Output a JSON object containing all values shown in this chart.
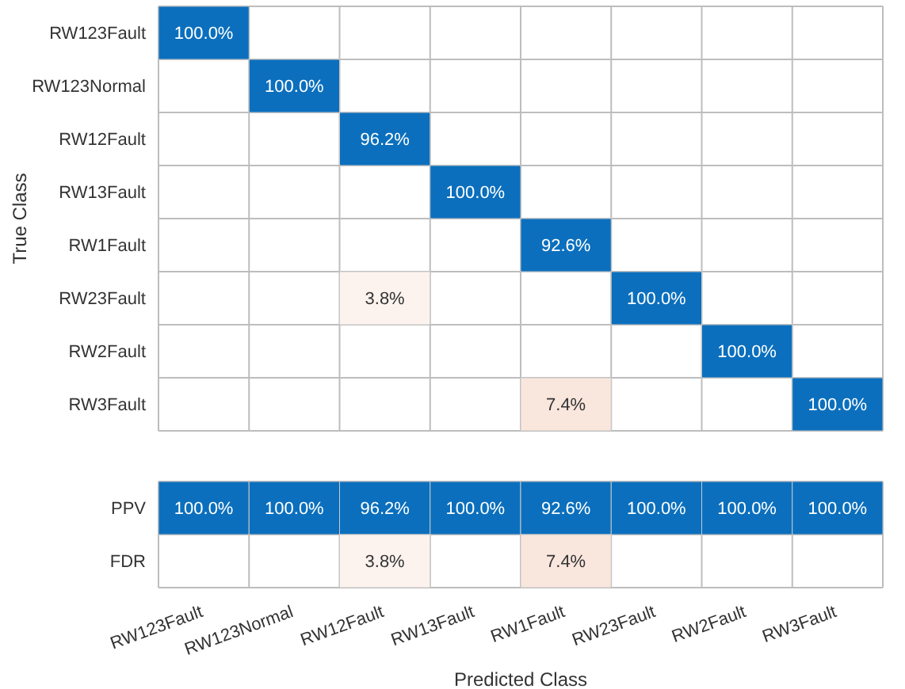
{
  "chart_data": [
    {
      "type": "heatmap",
      "ylabel": "True Class",
      "categories": [
        null,
        null,
        null,
        null,
        null,
        null,
        null,
        null
      ],
      "y_categories": [
        "RW123Fault",
        "RW123Normal",
        "RW12Fault",
        "RW13Fault",
        "RW1Fault",
        "RW23Fault",
        "RW2Fault",
        "RW3Fault"
      ],
      "cells": [
        [
          100,
          null,
          null,
          null,
          null,
          null,
          null,
          null
        ],
        [
          null,
          100,
          null,
          null,
          null,
          null,
          null,
          null
        ],
        [
          null,
          null,
          96.2,
          null,
          null,
          null,
          null,
          null
        ],
        [
          null,
          null,
          null,
          100,
          null,
          null,
          null,
          null
        ],
        [
          null,
          null,
          null,
          null,
          92.6,
          null,
          null,
          null
        ],
        [
          null,
          null,
          3.8,
          null,
          null,
          100,
          null,
          null
        ],
        [
          null,
          null,
          null,
          null,
          null,
          null,
          100,
          null
        ],
        [
          null,
          null,
          null,
          null,
          7.4,
          null,
          null,
          100
        ]
      ],
      "cell_labels": [
        [
          "100.0%",
          null,
          null,
          null,
          null,
          null,
          null,
          null
        ],
        [
          null,
          "100.0%",
          null,
          null,
          null,
          null,
          null,
          null
        ],
        [
          null,
          null,
          "96.2%",
          null,
          null,
          null,
          null,
          null
        ],
        [
          null,
          null,
          null,
          "100.0%",
          null,
          null,
          null,
          null
        ],
        [
          null,
          null,
          null,
          null,
          "92.6%",
          null,
          null,
          null
        ],
        [
          null,
          null,
          "3.8%",
          null,
          null,
          "100.0%",
          null,
          null
        ],
        [
          null,
          null,
          null,
          null,
          null,
          null,
          "100.0%",
          null
        ],
        [
          null,
          null,
          null,
          null,
          "7.4%",
          null,
          null,
          "100.0%"
        ]
      ],
      "grid": true,
      "tick_labels": "y"
    },
    {
      "type": "heatmap",
      "xlabel": "Predicted Class",
      "categories": [
        "RW123Fault",
        "RW123Normal",
        "RW12Fault",
        "RW13Fault",
        "RW1Fault",
        "RW23Fault",
        "RW2Fault",
        "RW3Fault"
      ],
      "y_categories": [
        "PPV",
        "FDR"
      ],
      "cells": [
        [
          100,
          100,
          96.2,
          100,
          92.6,
          100,
          100,
          100
        ],
        [
          null,
          null,
          3.8,
          null,
          7.4,
          null,
          null,
          null
        ]
      ],
      "cell_labels": [
        [
          "100.0%",
          "100.0%",
          "96.2%",
          "100.0%",
          "92.6%",
          "100.0%",
          "100.0%",
          "100.0%"
        ],
        [
          null,
          null,
          "3.8%",
          null,
          "7.4%",
          null,
          null,
          null
        ]
      ],
      "grid": true
    }
  ]
}
